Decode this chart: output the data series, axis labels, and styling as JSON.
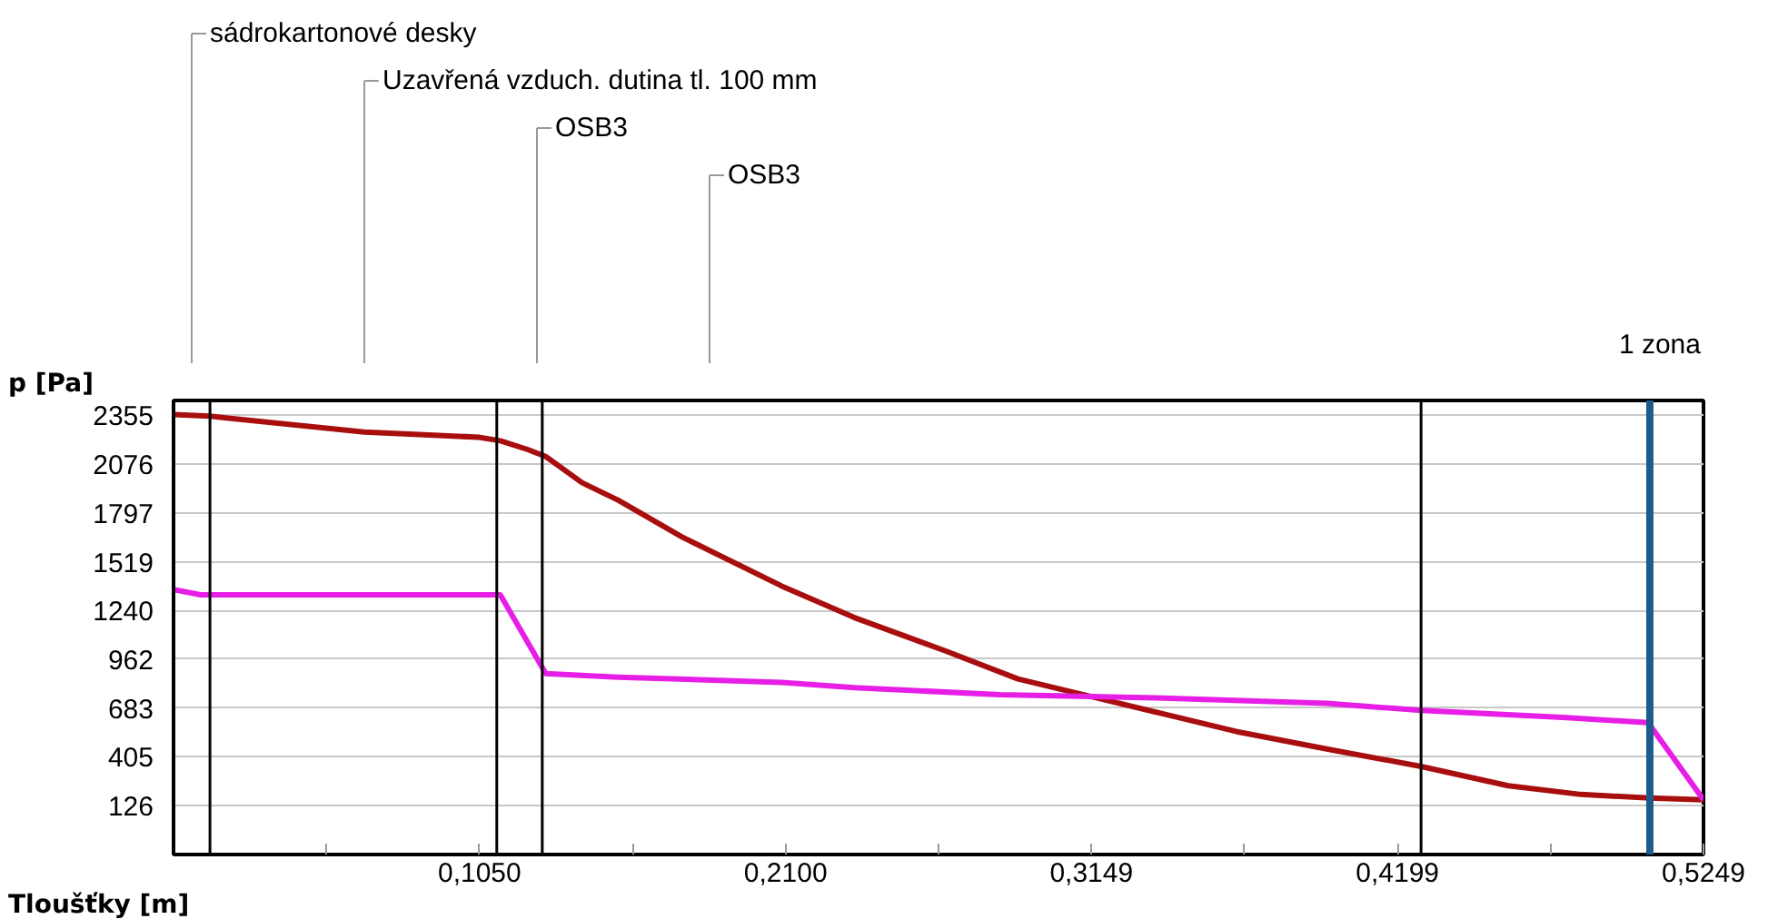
{
  "chart_data": {
    "type": "line",
    "xlabel": "Tloušťky [m]",
    "ylabel": "p [Pa]",
    "series": [
      {
        "color": "#a80e0e",
        "x": [
          0,
          0.0125,
          0.0654,
          0.1047,
          0.1121,
          0.1215,
          0.1277,
          0.1402,
          0.1526,
          0.1745,
          0.2087,
          0.2336,
          0.2648,
          0.2897,
          0.3146,
          0.3396,
          0.3645,
          0.3956,
          0.428,
          0.4579,
          0.4829,
          0.5065,
          0.5249
        ],
        "values": [
          2360,
          2350,
          2260,
          2230,
          2210,
          2160,
          2120,
          1970,
          1870,
          1660,
          1380,
          1200,
          1010,
          850,
          750,
          650,
          550,
          450,
          350,
          240,
          190,
          170,
          160
        ]
      },
      {
        "color": "#e61ee6",
        "x": [
          0,
          0.0093,
          0.1121,
          0.1277,
          0.1526,
          0.2087,
          0.2336,
          0.2835,
          0.3146,
          0.3396,
          0.3956,
          0.428,
          0.4766,
          0.5059,
          0.5249
        ],
        "values": [
          1360,
          1330,
          1330,
          880,
          860,
          830,
          800,
          760,
          750,
          740,
          710,
          670,
          630,
          600,
          160
        ]
      }
    ],
    "xlim": [
      0,
      0.5249
    ],
    "ylim": [
      -153,
      2440
    ],
    "xticks": [
      {
        "value": 0.0525,
        "label": null
      },
      {
        "value": 0.105,
        "label": "0,1050"
      },
      {
        "value": 0.1575,
        "label": null
      },
      {
        "value": 0.21,
        "label": "0,2100"
      },
      {
        "value": 0.2625,
        "label": null
      },
      {
        "value": 0.3149,
        "label": "0,3149"
      },
      {
        "value": 0.3674,
        "label": null
      },
      {
        "value": 0.4199,
        "label": "0,4199"
      },
      {
        "value": 0.4724,
        "label": null
      },
      {
        "value": 0.5249,
        "label": "0,5249"
      }
    ],
    "yticks": [
      126,
      405,
      683,
      962,
      1240,
      1519,
      1797,
      2076,
      2355
    ],
    "grid": "y",
    "line_style": "solid",
    "marker": "none",
    "ref_lines": [
      {
        "axis": "x",
        "value": 0.0125,
        "color": "#000000"
      },
      {
        "axis": "x",
        "value": 0.1109,
        "color": "#000000"
      },
      {
        "axis": "x",
        "value": 0.1265,
        "color": "#000000"
      },
      {
        "axis": "x",
        "value": 0.428,
        "color": "#000000"
      },
      {
        "axis": "x",
        "value": 0.5065,
        "label": "1 zona",
        "color": "#1f5a8c"
      }
    ],
    "annotations": [
      "sádrokartonové desky",
      "Uzavřená vzduch. dutina tl. 100 mm",
      "OSB3",
      "OSB3"
    ]
  }
}
